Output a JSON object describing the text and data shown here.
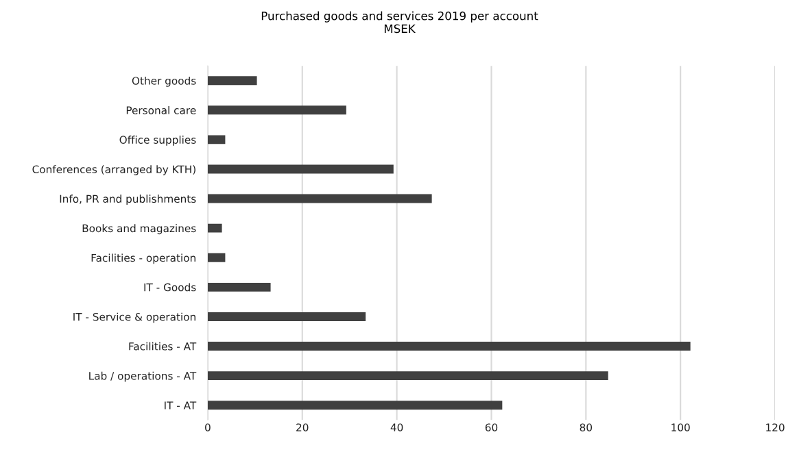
{
  "chart_data": {
    "type": "bar",
    "orientation": "horizontal",
    "title": "Purchased goods and services 2019 per account\nMSEK",
    "categories": [
      "Other goods",
      "Personal care",
      "Office supplies",
      "Conferences (arranged by KTH)",
      "Info, PR and publishments",
      "Books and magazines",
      "Facilities - operation",
      "IT - Goods",
      "IT - Service & operation",
      "Facilities - AT",
      "Lab / operations - AT",
      "IT - AT"
    ],
    "values": [
      10.4,
      29.3,
      3.7,
      39.3,
      47.4,
      3.0,
      3.7,
      13.3,
      33.4,
      102.1,
      84.7,
      62.3
    ],
    "color": "#404040",
    "xlim": [
      0,
      120
    ],
    "xticks": [
      0,
      20,
      40,
      60,
      80,
      100,
      120
    ],
    "grid": "x"
  }
}
